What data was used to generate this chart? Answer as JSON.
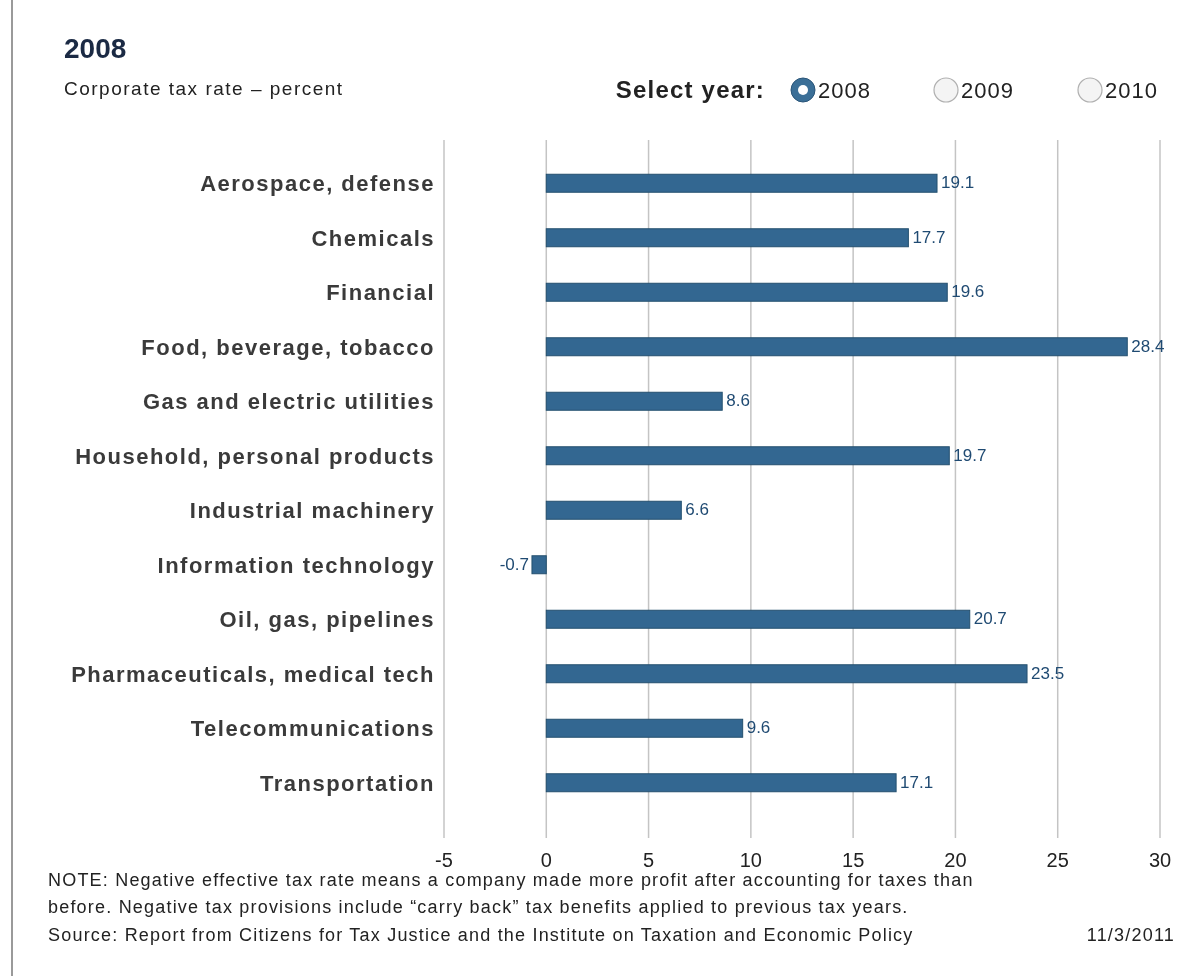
{
  "chart_data": {
    "type": "bar",
    "orientation": "horizontal",
    "title": "2008",
    "subtitle": "Corporate tax rate – percent",
    "categories": [
      "Aerospace, defense",
      "Chemicals",
      "Financial",
      "Food, beverage, tobacco",
      "Gas and electric utilities",
      "Household, personal products",
      "Industrial machinery",
      "Information technology",
      "Oil, gas, pipelines",
      "Pharmaceuticals, medical tech",
      "Telecommunications",
      "Transportation"
    ],
    "values": [
      19.1,
      17.7,
      19.6,
      28.4,
      8.6,
      19.7,
      6.6,
      -0.7,
      20.7,
      23.5,
      9.6,
      17.1
    ],
    "color": "#336791",
    "xlim": [
      -5,
      30
    ],
    "xticks": [
      -5,
      0,
      5,
      10,
      15,
      20,
      25,
      30
    ],
    "grid": "x",
    "data_labels": true,
    "annotations": [
      "Select year:",
      "2008",
      "2009",
      "2010",
      "NOTE: Negative effective tax rate means a company made more profit after accounting for taxes than",
      "before. Negative tax provisions include “carry back” tax benefits applied to previous tax years.",
      "Source: Report from Citizens for Tax Justice and the Institute on Taxation and Economic Policy",
      "11/3/2011"
    ]
  }
}
